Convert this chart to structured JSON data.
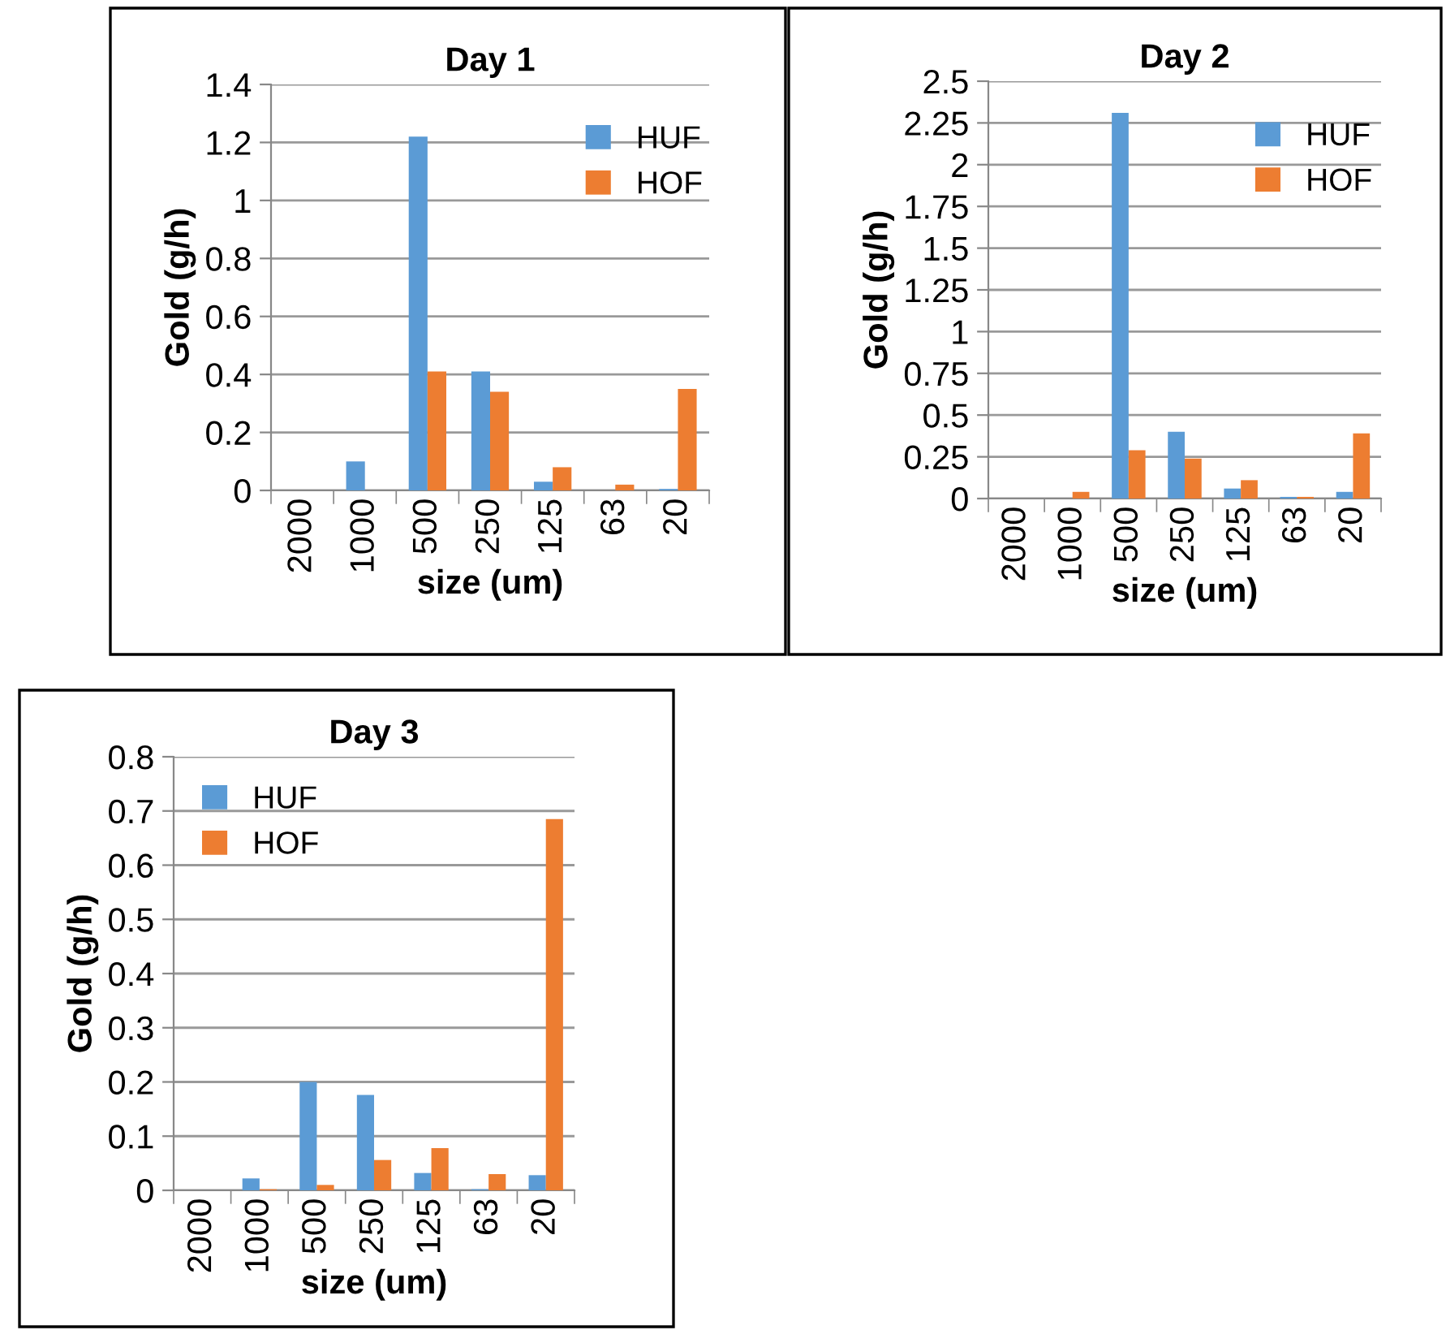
{
  "chart_data": [
    {
      "type": "bar",
      "title": "Day 1",
      "xlabel": "size (um)",
      "ylabel": "Gold (g/h)",
      "categories": [
        "2000",
        "1000",
        "500",
        "250",
        "125",
        "63",
        "20"
      ],
      "series": [
        {
          "name": "HUF",
          "color": "#5b9bd5",
          "values": [
            0,
            0.1,
            1.22,
            0.41,
            0.03,
            0,
            0.005
          ]
        },
        {
          "name": "HOF",
          "color": "#ed7d31",
          "values": [
            0,
            0,
            0.41,
            0.34,
            0.08,
            0.02,
            0.35
          ]
        }
      ],
      "ylim": [
        0,
        1.4
      ],
      "yticks": [
        0,
        0.2,
        0.4,
        0.6,
        0.8,
        1,
        1.2,
        1.4
      ],
      "grid": "y",
      "legend": "top right"
    },
    {
      "type": "bar",
      "title": "Day 2",
      "xlabel": "size (um)",
      "ylabel": "Gold (g/h)",
      "categories": [
        "2000",
        "1000",
        "500",
        "250",
        "125",
        "63",
        "20"
      ],
      "series": [
        {
          "name": "HUF",
          "color": "#5b9bd5",
          "values": [
            0,
            0,
            2.31,
            0.4,
            0.06,
            0.01,
            0.04
          ]
        },
        {
          "name": "HOF",
          "color": "#ed7d31",
          "values": [
            0,
            0.04,
            0.29,
            0.24,
            0.11,
            0.01,
            0.39
          ]
        }
      ],
      "ylim": [
        0,
        2.5
      ],
      "yticks": [
        0,
        0.25,
        0.5,
        0.75,
        1,
        1.25,
        1.5,
        1.75,
        2,
        2.25,
        2.5
      ],
      "grid": "y",
      "legend": "top right"
    },
    {
      "type": "bar",
      "title": "Day 3",
      "xlabel": "size (um)",
      "ylabel": "Gold (g/h)",
      "categories": [
        "2000",
        "1000",
        "500",
        "250",
        "125",
        "63",
        "20"
      ],
      "series": [
        {
          "name": "HUF",
          "color": "#5b9bd5",
          "values": [
            0,
            0.022,
            0.2,
            0.176,
            0.032,
            0.002,
            0.028
          ]
        },
        {
          "name": "HOF",
          "color": "#ed7d31",
          "values": [
            0,
            0.002,
            0.01,
            0.056,
            0.078,
            0.03,
            0.685
          ]
        }
      ],
      "ylim": [
        0,
        0.8
      ],
      "yticks": [
        0,
        0.1,
        0.2,
        0.3,
        0.4,
        0.5,
        0.6,
        0.7,
        0.8
      ],
      "grid": "y",
      "legend": "top left"
    }
  ]
}
